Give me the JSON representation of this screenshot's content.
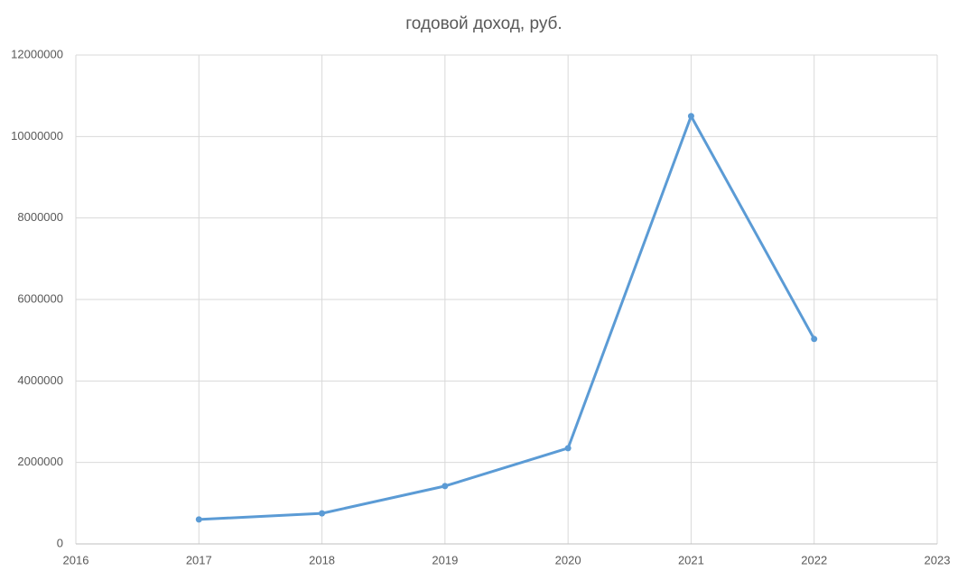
{
  "chart_data": {
    "type": "line",
    "title": "годовой доход, руб.",
    "x": [
      2017,
      2018,
      2019,
      2020,
      2021,
      2022
    ],
    "series": [
      {
        "name": "годовой доход, руб.",
        "color": "#5b9bd5",
        "values": [
          600000,
          750000,
          1420000,
          2350000,
          10500000,
          5030000
        ]
      }
    ],
    "xlim": [
      2016,
      2023
    ],
    "xticks": [
      2016,
      2017,
      2018,
      2019,
      2020,
      2021,
      2022,
      2023
    ],
    "ylim": [
      0,
      12000000
    ],
    "yticks": [
      0,
      2000000,
      4000000,
      6000000,
      8000000,
      10000000,
      12000000
    ],
    "grid": true
  }
}
